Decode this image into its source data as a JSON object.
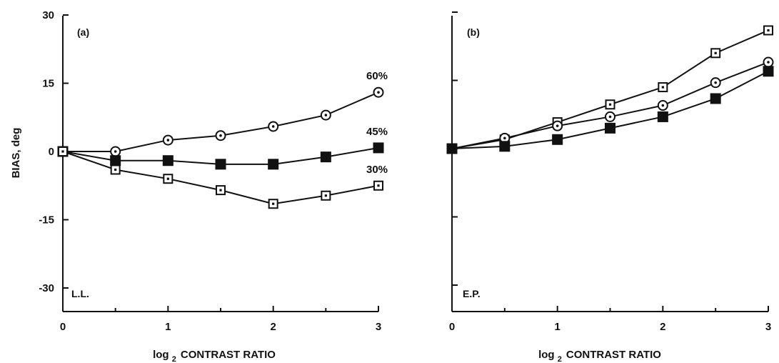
{
  "chart_data": [
    {
      "type": "line",
      "panel_label": "(a)",
      "subject_label": "L.L.",
      "xlabel_main": "log",
      "xlabel_sub": "2",
      "xlabel_rest": "CONTRAST RATIO",
      "ylabel": "BIAS, deg",
      "xlim": [
        0,
        3
      ],
      "ylim": [
        -35,
        30
      ],
      "x_ticks": [
        0,
        1,
        2,
        3
      ],
      "x_tick_labels": [
        "0",
        "1",
        "2",
        "3"
      ],
      "y_ticks": [
        30,
        15,
        0,
        -15,
        -30
      ],
      "y_tick_labels": [
        "30",
        "15",
        "0",
        "-15",
        "-30"
      ],
      "x": [
        0,
        0.5,
        1,
        1.5,
        2,
        2.5,
        3
      ],
      "series": [
        {
          "marker": "circle-dot",
          "values": [
            0,
            0,
            2.5,
            3.5,
            5.5,
            8,
            13
          ]
        },
        {
          "marker": "filled-square",
          "values": [
            0,
            -2,
            -2,
            -2.8,
            -2.8,
            -1.2,
            0.8
          ]
        },
        {
          "marker": "square-dot",
          "values": [
            0,
            -4,
            -6,
            -8.5,
            -11.5,
            -9.7,
            -7.5
          ]
        }
      ],
      "annotations": [
        {
          "text": "60%",
          "x": 3,
          "y": 13,
          "anchor": "above"
        },
        {
          "text": "45%",
          "x": 3,
          "y": 0.8,
          "anchor": "above"
        },
        {
          "text": "30%",
          "x": 3,
          "y": -7.5,
          "anchor": "above"
        }
      ]
    },
    {
      "type": "line",
      "panel_label": "(b)",
      "subject_label": "E.P.",
      "xlabel_main": "log",
      "xlabel_sub": "2",
      "xlabel_rest": "CONTRAST RATIO",
      "ylabel": "",
      "xlim": [
        0,
        3
      ],
      "ylim": [
        -35,
        30
      ],
      "x_ticks": [
        0,
        1,
        2,
        3
      ],
      "x_tick_labels": [
        "0",
        "1",
        "2",
        "3"
      ],
      "y_ticks": [
        30,
        15,
        0,
        -15,
        -30
      ],
      "y_tick_labels": [],
      "x": [
        0,
        0.5,
        1,
        1.5,
        2,
        2.5,
        3
      ],
      "series": [
        {
          "marker": "square-dot",
          "values": [
            0,
            2,
            5.8,
            9.7,
            13.5,
            21,
            26
          ]
        },
        {
          "marker": "circle-dot",
          "values": [
            0,
            2.3,
            5,
            7,
            9.5,
            14.5,
            19
          ]
        },
        {
          "marker": "filled-square",
          "values": [
            0,
            0.5,
            2,
            4.5,
            7,
            11,
            17
          ]
        }
      ],
      "annotations": []
    }
  ]
}
